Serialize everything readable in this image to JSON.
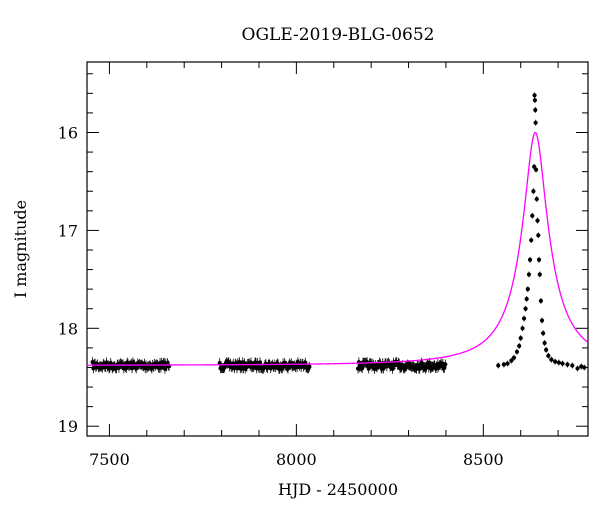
{
  "chart_data": {
    "type": "scatter",
    "title": "OGLE-2019-BLG-0652",
    "xlabel": "HJD - 2450000",
    "ylabel": "I magnitude",
    "xlim": [
      7440,
      8780
    ],
    "ylim": [
      19.1,
      15.28
    ],
    "y_inverted": true,
    "grid": false,
    "x_ticks": [
      7500,
      8000,
      8500
    ],
    "y_ticks": [
      16,
      17,
      18,
      19
    ],
    "colors": {
      "points": "#000000",
      "model": "#ff00ff"
    },
    "series": [
      {
        "kind": "points_with_errorbars",
        "seasons": [
          {
            "x_range": [
              7455,
              7660
            ],
            "mag": 18.38,
            "scatter": 0.035,
            "error": 0.05
          },
          {
            "x_range": [
              7795,
              8035
            ],
            "mag": 18.38,
            "scatter": 0.035,
            "error": 0.05
          },
          {
            "x_range": [
              8165,
              8400
            ],
            "mag": 18.38,
            "scatter": 0.035,
            "error": 0.05
          }
        ],
        "event_points": [
          {
            "x": 8540,
            "y": 18.38
          },
          {
            "x": 8555,
            "y": 18.37
          },
          {
            "x": 8565,
            "y": 18.36
          },
          {
            "x": 8575,
            "y": 18.33
          },
          {
            "x": 8582,
            "y": 18.3
          },
          {
            "x": 8590,
            "y": 18.24
          },
          {
            "x": 8596,
            "y": 18.18
          },
          {
            "x": 8600,
            "y": 18.1
          },
          {
            "x": 8605,
            "y": 18.0
          },
          {
            "x": 8609,
            "y": 17.9
          },
          {
            "x": 8613,
            "y": 17.8
          },
          {
            "x": 8616,
            "y": 17.7
          },
          {
            "x": 8619,
            "y": 17.6
          },
          {
            "x": 8622,
            "y": 17.45
          },
          {
            "x": 8625,
            "y": 17.3
          },
          {
            "x": 8628,
            "y": 17.1
          },
          {
            "x": 8631,
            "y": 16.85
          },
          {
            "x": 8634,
            "y": 16.6
          },
          {
            "x": 8636,
            "y": 16.35
          },
          {
            "x": 8637,
            "y": 15.62
          },
          {
            "x": 8638,
            "y": 15.67
          },
          {
            "x": 8639,
            "y": 15.77
          },
          {
            "x": 8640,
            "y": 15.9
          },
          {
            "x": 8641,
            "y": 16.38
          },
          {
            "x": 8643,
            "y": 16.68
          },
          {
            "x": 8645,
            "y": 16.9
          },
          {
            "x": 8647,
            "y": 17.05
          },
          {
            "x": 8649,
            "y": 17.3
          },
          {
            "x": 8651,
            "y": 17.45
          },
          {
            "x": 8654,
            "y": 17.72
          },
          {
            "x": 8657,
            "y": 17.92
          },
          {
            "x": 8660,
            "y": 18.05
          },
          {
            "x": 8664,
            "y": 18.15
          },
          {
            "x": 8668,
            "y": 18.22
          },
          {
            "x": 8674,
            "y": 18.28
          },
          {
            "x": 8682,
            "y": 18.32
          },
          {
            "x": 8692,
            "y": 18.34
          },
          {
            "x": 8702,
            "y": 18.35
          },
          {
            "x": 8712,
            "y": 18.36
          },
          {
            "x": 8725,
            "y": 18.37
          },
          {
            "x": 8738,
            "y": 18.38
          },
          {
            "x": 8752,
            "y": 18.41
          },
          {
            "x": 8762,
            "y": 18.39
          },
          {
            "x": 8770,
            "y": 18.4
          }
        ]
      },
      {
        "kind": "model_curve",
        "baseline_mag": 18.38,
        "peak_x": 8639,
        "peak_mag": 16.0,
        "width_days": 25
      }
    ]
  }
}
